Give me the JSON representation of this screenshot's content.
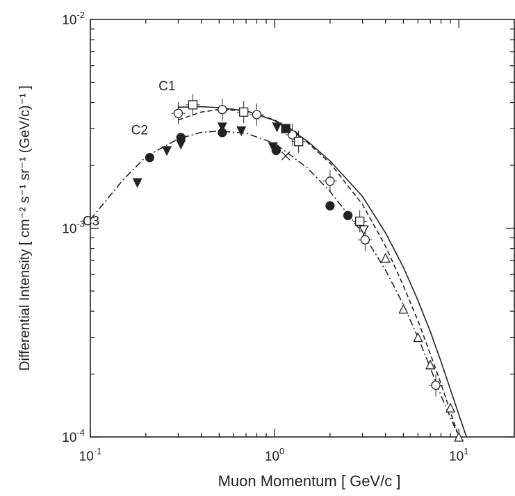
{
  "chart_data": {
    "type": "scatter",
    "title": "",
    "xlabel": "Muon  Momentum  [ GeV/c ]",
    "ylabel": "Differential  Intensity  [ cm⁻² s⁻¹ sr⁻¹ (GeV/c)⁻¹ ]",
    "xscale": "log",
    "yscale": "log",
    "xlim": [
      0.1,
      20
    ],
    "ylim": [
      0.0001,
      0.01
    ],
    "grid": false,
    "legend": "none",
    "x_tick_labels": [
      {
        "value": 0.1,
        "base": "10",
        "exp": "-1"
      },
      {
        "value": 1,
        "base": "10",
        "exp": "0"
      },
      {
        "value": 10,
        "base": "10",
        "exp": "1"
      }
    ],
    "y_tick_labels": [
      {
        "value": 0.0001,
        "base": "10",
        "exp": "-4"
      },
      {
        "value": 0.001,
        "base": "10",
        "exp": "-3"
      },
      {
        "value": 0.01,
        "base": "10",
        "exp": "-2"
      }
    ],
    "curves": [
      {
        "label": "C1",
        "style": "solid",
        "x": [
          0.3,
          0.4,
          0.5,
          0.7,
          1.0,
          1.5,
          2.0,
          3.0,
          4.0,
          5.0,
          6.0,
          7.0,
          8.0,
          10.0,
          11.0
        ],
        "y": [
          0.0038,
          0.00382,
          0.00378,
          0.00365,
          0.00328,
          0.00262,
          0.0021,
          0.00142,
          0.00095,
          0.00065,
          0.00045,
          0.00032,
          0.00023,
          0.000128,
          0.0001
        ]
      },
      {
        "label": "C2",
        "style": "dashed",
        "x": [
          0.3,
          0.4,
          0.5,
          0.7,
          1.0,
          1.3,
          2.0,
          3.0,
          4.0,
          5.0,
          6.0,
          7.0,
          8.0,
          10.0
        ],
        "y": [
          0.0033,
          0.0036,
          0.0037,
          0.00365,
          0.0033,
          0.0029,
          0.00205,
          0.0013,
          0.00082,
          0.00053,
          0.00036,
          0.00025,
          0.00018,
          0.0001
        ]
      },
      {
        "label": "C3",
        "style": "dashdot",
        "x": [
          0.1,
          0.15,
          0.2,
          0.3,
          0.4,
          0.5,
          0.7,
          1.0,
          1.5,
          2.0,
          3.0,
          4.0,
          5.0,
          6.0,
          7.0,
          8.0,
          10.0
        ],
        "y": [
          0.0011,
          0.0017,
          0.0022,
          0.00268,
          0.00288,
          0.00292,
          0.00285,
          0.00255,
          0.00195,
          0.0015,
          0.00095,
          0.00063,
          0.00043,
          0.0003,
          0.000215,
          0.000158,
          0.0001
        ]
      }
    ],
    "series": [
      {
        "marker": "open-circle",
        "points": [
          [
            0.3,
            0.00355
          ],
          [
            0.52,
            0.0037
          ],
          [
            0.8,
            0.0035
          ],
          [
            1.25,
            0.0028
          ],
          [
            2.0,
            0.00168
          ],
          [
            3.1,
            0.00088
          ],
          [
            7.5,
            0.000177
          ]
        ],
        "error_bars": true
      },
      {
        "marker": "open-square",
        "points": [
          [
            0.36,
            0.0039
          ],
          [
            0.68,
            0.0036
          ],
          [
            1.35,
            0.0026
          ],
          [
            2.9,
            0.00108
          ]
        ],
        "error_bars": true
      },
      {
        "marker": "filled-circle",
        "points": [
          [
            0.21,
            0.00218
          ],
          [
            0.31,
            0.00272
          ],
          [
            0.52,
            0.00287
          ],
          [
            1.02,
            0.00236
          ],
          [
            2.0,
            0.00128
          ],
          [
            2.5,
            0.00115
          ]
        ],
        "error_bars": false
      },
      {
        "marker": "filled-triangle-down",
        "points": [
          [
            0.18,
            0.00165
          ],
          [
            0.26,
            0.00235
          ],
          [
            0.31,
            0.00252
          ],
          [
            0.52,
            0.00305
          ],
          [
            0.66,
            0.00292
          ],
          [
            0.98,
            0.00245
          ],
          [
            1.03,
            0.00305
          ]
        ],
        "error_bars": false
      },
      {
        "marker": "filled-square",
        "points": [
          [
            1.15,
            0.003
          ]
        ],
        "error_bars": false
      },
      {
        "marker": "cross",
        "points": [
          [
            1.15,
            0.00222
          ]
        ],
        "error_bars": false
      },
      {
        "marker": "open-triangle-down",
        "points": [
          [
            3.05,
            0.00098
          ]
        ],
        "error_bars": false
      },
      {
        "marker": "open-triangle-up",
        "points": [
          [
            4.0,
            0.00072
          ],
          [
            5.0,
            0.00041
          ],
          [
            6.0,
            0.0003
          ],
          [
            7.0,
            0.000222
          ],
          [
            9.0,
            0.000138
          ],
          [
            10.0,
            0.0001
          ]
        ],
        "error_bars": false
      }
    ]
  }
}
